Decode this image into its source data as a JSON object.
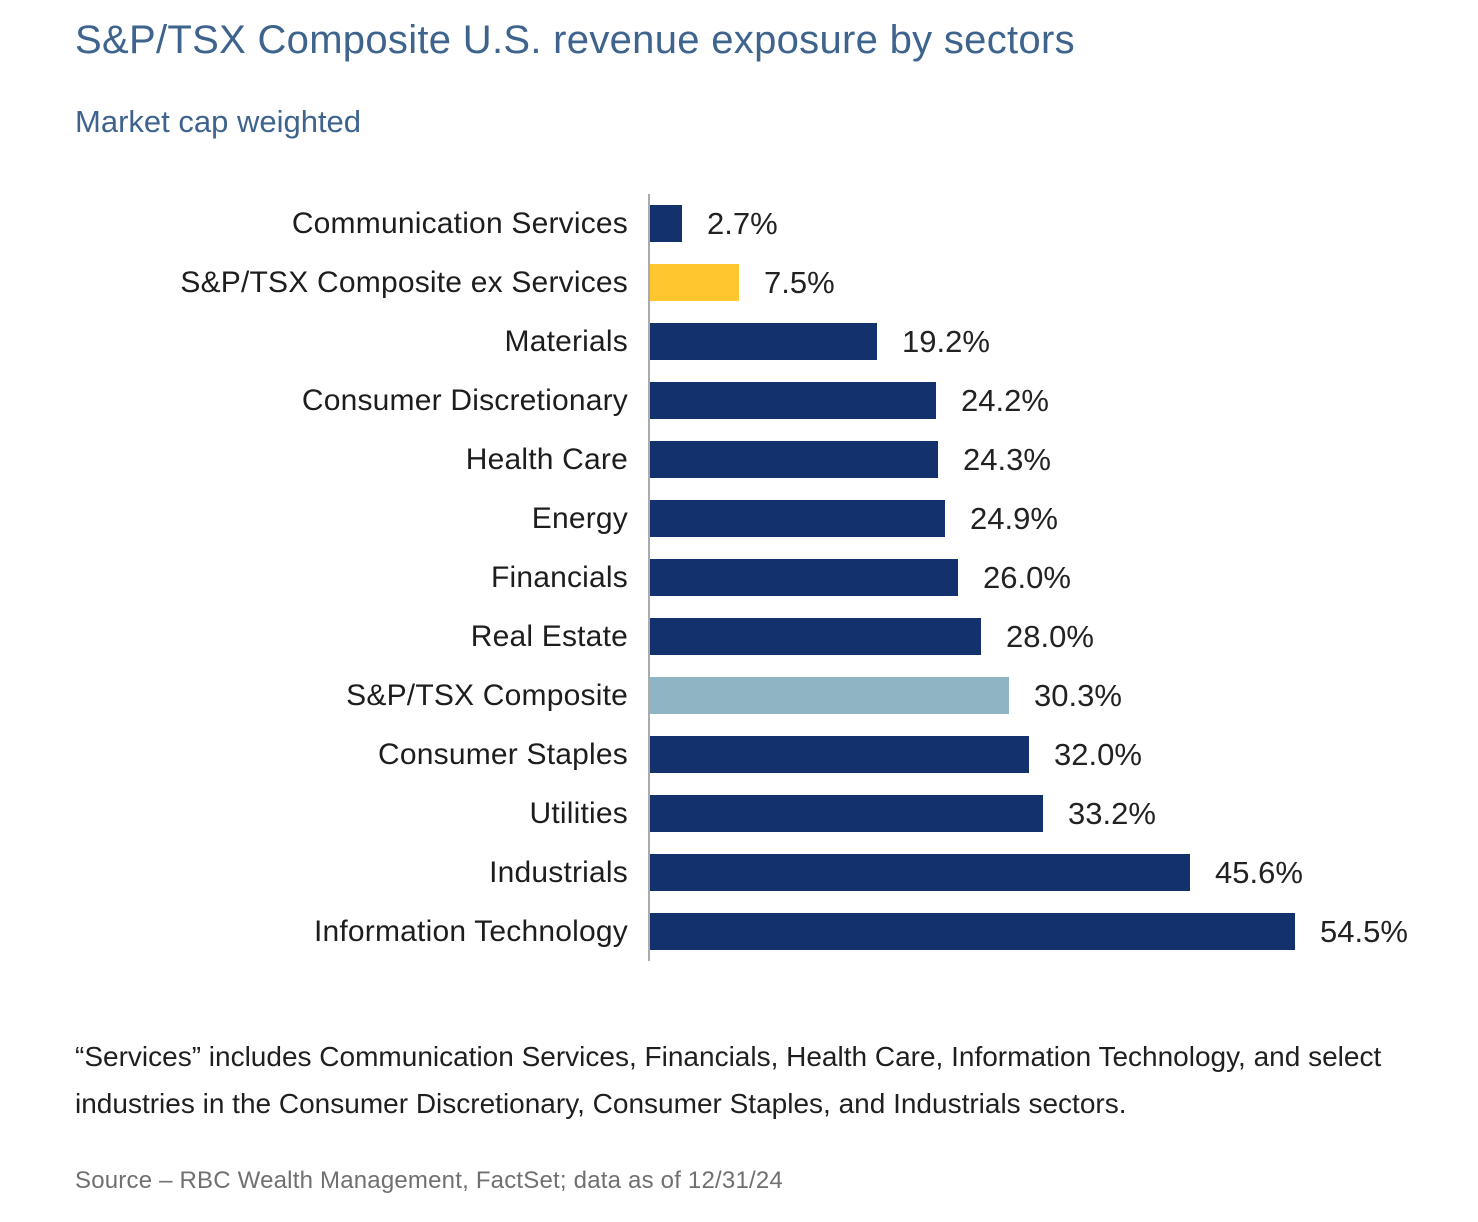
{
  "header": {
    "title": "S&P/TSX Composite U.S. revenue exposure by sectors",
    "subtitle": "Market cap weighted"
  },
  "chart_data": {
    "type": "bar",
    "orientation": "horizontal",
    "title": "S&P/TSX Composite U.S. revenue exposure by sectors",
    "subtitle": "Market cap weighted",
    "categories": [
      "Communication Services",
      "S&P/TSX Composite ex Services",
      "Materials",
      "Consumer Discretionary",
      "Health Care",
      "Energy",
      "Financials",
      "Real Estate",
      "S&P/TSX Composite",
      "Consumer Staples",
      "Utilities",
      "Industrials",
      "Information Technology"
    ],
    "values": [
      2.7,
      7.5,
      19.2,
      24.2,
      24.3,
      24.9,
      26.0,
      28.0,
      30.3,
      32.0,
      33.2,
      45.6,
      54.5
    ],
    "value_labels": [
      "2.7%",
      "7.5%",
      "19.2%",
      "24.2%",
      "24.3%",
      "24.9%",
      "26.0%",
      "28.0%",
      "30.3%",
      "32.0%",
      "33.2%",
      "45.6%",
      "54.5%"
    ],
    "bar_colors": [
      "navy",
      "gold",
      "navy",
      "navy",
      "navy",
      "navy",
      "navy",
      "navy",
      "light_blue",
      "navy",
      "navy",
      "navy",
      "navy"
    ],
    "palette": {
      "navy": "#13316D",
      "gold": "#FFC62E",
      "light_blue": "#8FB4C3"
    },
    "xlabel": "",
    "ylabel": "",
    "xlim": [
      0,
      60
    ],
    "grid": false,
    "legend": "none",
    "axis_line_color": "#ABABAB",
    "title_color": "#3E648E"
  },
  "footnote": "“Services” includes Communication Services, Financials, Health Care, Information Technology, and select industries in the Consumer Discretionary, Consumer Staples, and Industrials sectors.",
  "source": "Source – RBC Wealth Management, FactSet; data as of 12/31/24"
}
